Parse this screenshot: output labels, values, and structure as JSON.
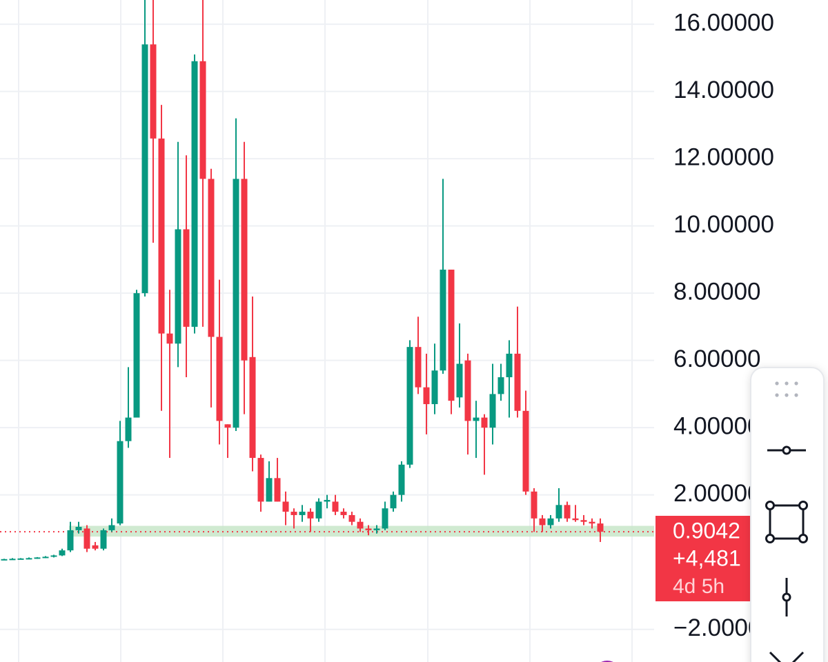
{
  "chart_data": {
    "type": "candlestick",
    "open": [
      0.08,
      0.09,
      0.1,
      0.11,
      0.12,
      0.14,
      0.16,
      0.2,
      0.35,
      0.95,
      1.0,
      0.5,
      0.4,
      0.95,
      1.15,
      3.6,
      4.3,
      8.0,
      15.4,
      12.6,
      6.8,
      6.5,
      9.9,
      7.0,
      14.9,
      11.4,
      6.7,
      4.1,
      4.0,
      11.4,
      6.1,
      3.1,
      1.8,
      2.5,
      1.8,
      1.5,
      1.4,
      1.5,
      1.3,
      1.8,
      1.8,
      1.5,
      1.4,
      1.2,
      1.0,
      0.95,
      1.0,
      1.6,
      2.0,
      2.9,
      6.4,
      5.2,
      4.7,
      5.7,
      8.7,
      4.9,
      6.0,
      4.2,
      4.3,
      4.0,
      5.0,
      5.5,
      6.2,
      4.5,
      2.1,
      1.3,
      1.1,
      1.3,
      1.7,
      1.3,
      1.25,
      1.2,
      1.15
    ],
    "high": [
      0.1,
      0.12,
      0.12,
      0.14,
      0.15,
      0.18,
      0.22,
      0.4,
      1.2,
      1.2,
      1.1,
      0.6,
      1.0,
      1.3,
      4.2,
      5.8,
      8.1,
      16.8,
      16.8,
      13.6,
      8.1,
      12.5,
      12.1,
      15.1,
      16.8,
      11.7,
      8.4,
      4.1,
      13.2,
      12.5,
      7.9,
      3.2,
      3.0,
      3.1,
      2.1,
      1.6,
      1.7,
      1.6,
      1.9,
      2.0,
      2.0,
      1.6,
      1.5,
      1.3,
      1.1,
      1.1,
      1.8,
      2.1,
      3.0,
      6.6,
      7.3,
      6.2,
      6.5,
      11.4,
      8.7,
      7.1,
      6.2,
      4.8,
      4.4,
      5.9,
      5.9,
      6.6,
      7.6,
      5.1,
      2.2,
      1.4,
      1.4,
      2.2,
      1.8,
      1.7,
      1.4,
      1.3,
      1.3
    ],
    "low": [
      0.06,
      0.07,
      0.08,
      0.09,
      0.1,
      0.12,
      0.14,
      0.18,
      0.3,
      0.85,
      0.3,
      0.35,
      0.35,
      0.9,
      1.1,
      3.4,
      4.3,
      7.9,
      9.5,
      4.5,
      3.1,
      5.8,
      5.5,
      6.8,
      7.0,
      4.6,
      3.5,
      3.1,
      3.9,
      4.4,
      2.7,
      1.5,
      1.8,
      1.8,
      1.1,
      1.0,
      1.2,
      0.9,
      1.2,
      1.6,
      1.4,
      1.3,
      1.1,
      0.9,
      0.8,
      0.85,
      0.95,
      1.5,
      1.8,
      2.8,
      5.0,
      3.8,
      4.4,
      5.6,
      4.4,
      4.6,
      3.2,
      3.1,
      2.6,
      3.5,
      4.8,
      4.3,
      4.3,
      2.0,
      0.9,
      0.9,
      1.0,
      1.2,
      1.2,
      1.2,
      1.1,
      1.0,
      0.6
    ],
    "close": [
      0.09,
      0.1,
      0.11,
      0.12,
      0.14,
      0.16,
      0.2,
      0.35,
      0.95,
      1.05,
      0.4,
      0.4,
      0.95,
      1.1,
      3.6,
      4.3,
      8.0,
      15.4,
      12.6,
      6.8,
      6.5,
      9.9,
      7.0,
      14.9,
      11.4,
      6.7,
      4.2,
      4.0,
      11.4,
      6.0,
      3.1,
      1.8,
      2.5,
      1.8,
      1.5,
      1.4,
      1.5,
      1.3,
      1.8,
      1.85,
      1.5,
      1.4,
      1.2,
      1.0,
      0.95,
      1.0,
      1.6,
      2.0,
      2.9,
      6.4,
      5.2,
      4.7,
      5.7,
      8.7,
      4.8,
      5.9,
      4.2,
      4.3,
      4.0,
      5.0,
      5.5,
      6.2,
      4.5,
      2.1,
      1.3,
      1.1,
      1.3,
      1.7,
      1.3,
      1.25,
      1.2,
      1.15,
      0.9042
    ],
    "up_color": "#089981",
    "down_color": "#f23645",
    "ylim": [
      -2.97,
      16.72
    ],
    "yticks": [
      {
        "value": 16,
        "label": "16.00000"
      },
      {
        "value": 14,
        "label": "14.00000"
      },
      {
        "value": 12,
        "label": "12.00000"
      },
      {
        "value": 10,
        "label": "10.00000"
      },
      {
        "value": 8,
        "label": "8.00000"
      },
      {
        "value": 6,
        "label": "6.00000"
      },
      {
        "value": 4,
        "label": "4.00000"
      },
      {
        "value": 2,
        "label": "2.00000"
      },
      {
        "value": -2,
        "label": "−2.00000"
      }
    ],
    "grid": true,
    "zone": [
      0.76,
      1.08
    ],
    "zone_color": "#c8e6c9",
    "last_price": {
      "value": 0.9042,
      "label": "0.9042"
    },
    "change_label": "+4,481",
    "countdown": "4d 5h"
  }
}
